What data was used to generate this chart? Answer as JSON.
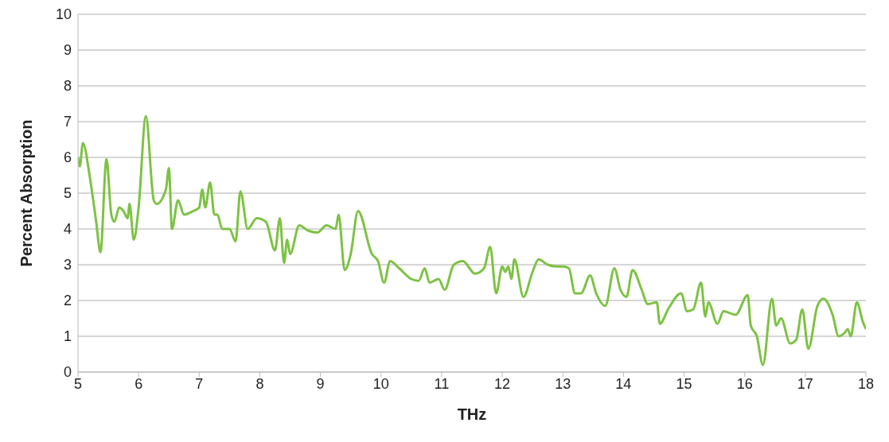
{
  "chart_data": {
    "type": "line",
    "xlabel": "THz",
    "ylabel": "Percent Absorption",
    "xlim": [
      5,
      18
    ],
    "xticks": [
      5,
      6,
      7,
      8,
      9,
      10,
      11,
      12,
      13,
      14,
      15,
      16,
      17,
      18
    ],
    "ylim": [
      0,
      10
    ],
    "yticks": [
      0,
      1,
      2,
      3,
      4,
      5,
      6,
      7,
      8,
      9,
      10
    ],
    "grid": "y",
    "marker": "none",
    "line_style": "solid",
    "series": [
      {
        "color": "#7dc243",
        "x": [
          5.0,
          5.03,
          5.08,
          5.2,
          5.3,
          5.37,
          5.47,
          5.55,
          5.6,
          5.68,
          5.75,
          5.82,
          5.85,
          5.92,
          6.0,
          6.12,
          6.25,
          6.3,
          6.45,
          6.5,
          6.55,
          6.65,
          6.75,
          6.9,
          7.0,
          7.05,
          7.1,
          7.18,
          7.25,
          7.3,
          7.38,
          7.5,
          7.6,
          7.68,
          7.8,
          7.95,
          8.1,
          8.25,
          8.33,
          8.4,
          8.45,
          8.5,
          8.65,
          8.8,
          8.95,
          9.1,
          9.25,
          9.3,
          9.4,
          9.5,
          9.62,
          9.85,
          9.95,
          10.05,
          10.15,
          10.3,
          10.5,
          10.62,
          10.72,
          10.8,
          10.95,
          11.05,
          11.2,
          11.35,
          11.55,
          11.7,
          11.8,
          11.9,
          12.0,
          12.05,
          12.1,
          12.15,
          12.2,
          12.35,
          12.5,
          12.6,
          12.75,
          12.9,
          13.0,
          13.1,
          13.2,
          13.3,
          13.45,
          13.55,
          13.7,
          13.85,
          13.95,
          14.05,
          14.15,
          14.3,
          14.4,
          14.55,
          14.6,
          14.75,
          14.95,
          15.05,
          15.15,
          15.28,
          15.35,
          15.4,
          15.55,
          15.65,
          15.85,
          16.05,
          16.1,
          16.2,
          16.3,
          16.45,
          16.52,
          16.6,
          16.75,
          16.85,
          16.95,
          17.05,
          17.2,
          17.3,
          17.45,
          17.55,
          17.65,
          17.7,
          17.75,
          17.85,
          17.95,
          18.0
        ],
        "values": [
          6.0,
          5.75,
          6.4,
          5.4,
          4.2,
          3.35,
          5.95,
          4.4,
          4.2,
          4.6,
          4.5,
          4.3,
          4.7,
          3.7,
          4.6,
          7.15,
          4.8,
          4.7,
          5.1,
          5.7,
          4.0,
          4.8,
          4.4,
          4.5,
          4.6,
          5.1,
          4.6,
          5.3,
          4.4,
          4.4,
          4.0,
          4.0,
          3.65,
          5.05,
          4.0,
          4.3,
          4.2,
          3.4,
          4.3,
          3.05,
          3.7,
          3.3,
          4.1,
          3.95,
          3.9,
          4.1,
          4.0,
          4.4,
          2.85,
          3.3,
          4.5,
          3.3,
          3.1,
          2.5,
          3.1,
          2.9,
          2.6,
          2.55,
          2.9,
          2.5,
          2.6,
          2.3,
          3.0,
          3.1,
          2.75,
          2.9,
          3.5,
          2.2,
          2.95,
          2.8,
          2.95,
          2.6,
          3.15,
          2.1,
          2.8,
          3.15,
          3.0,
          2.95,
          2.95,
          2.9,
          2.2,
          2.2,
          2.7,
          2.2,
          1.85,
          2.9,
          2.3,
          2.1,
          2.85,
          2.3,
          1.9,
          1.95,
          1.35,
          1.8,
          2.2,
          1.7,
          1.75,
          2.5,
          1.55,
          1.95,
          1.35,
          1.7,
          1.6,
          2.15,
          1.3,
          1.0,
          0.2,
          2.05,
          1.3,
          1.5,
          0.8,
          0.9,
          1.75,
          0.65,
          1.85,
          2.05,
          1.6,
          1.0,
          1.1,
          1.2,
          1.0,
          1.95,
          1.4,
          1.2
        ]
      }
    ]
  }
}
